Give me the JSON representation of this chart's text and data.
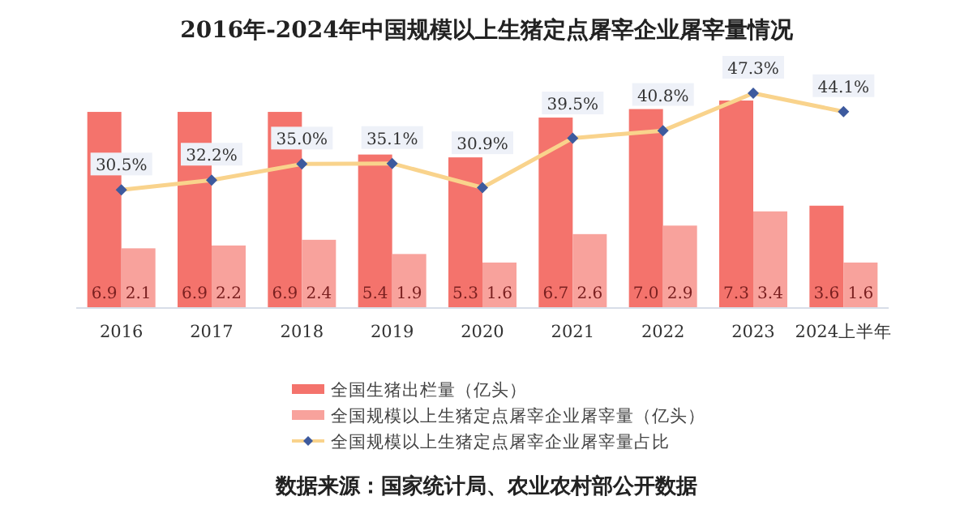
{
  "chart_data": {
    "type": "bar",
    "title": "2016年-2024年中国规模以上生猪定点屠宰企业屠宰量情况",
    "categories": [
      "2016",
      "2017",
      "2018",
      "2019",
      "2020",
      "2021",
      "2022",
      "2023",
      "2024上半年"
    ],
    "series": [
      {
        "name": "全国生猪出栏量（亿头）",
        "color": "#f4736c",
        "values": [
          6.9,
          6.9,
          6.9,
          5.4,
          5.3,
          6.7,
          7.0,
          7.3,
          3.6
        ],
        "value_labels": [
          "6.9",
          "6.9",
          "6.9",
          "5.4",
          "5.3",
          "6.7",
          "7.0",
          "7.3",
          "3.6"
        ]
      },
      {
        "name": "全国规模以上生猪定点屠宰企业屠宰量（亿头）",
        "color": "#f8a29c",
        "values": [
          2.1,
          2.2,
          2.4,
          1.9,
          1.6,
          2.6,
          2.9,
          3.4,
          1.6
        ],
        "value_labels": [
          "2.1",
          "2.2",
          "2.4",
          "1.9",
          "1.6",
          "2.6",
          "2.9",
          "3.4",
          "1.6"
        ]
      },
      {
        "name": "全国规模以上生猪定点屠宰企业屠宰量占比",
        "type": "line",
        "axis": "y2",
        "color": "#f9d38c",
        "marker": "diamond",
        "values": [
          30.5,
          32.2,
          35.0,
          35.1,
          30.9,
          39.5,
          40.8,
          47.3,
          44.1
        ],
        "value_labels": [
          "30.5%",
          "32.2%",
          "35.0%",
          "35.1%",
          "30.9%",
          "39.5%",
          "40.8%",
          "47.3%",
          "44.1%"
        ]
      }
    ],
    "ylim": [
      0,
      7.7
    ],
    "y2lim": [
      10,
      48
    ],
    "tick_labels": "x",
    "legend": "bottom",
    "annotations": [
      "数据来源：国家统计局、农业农村部公开数据"
    ]
  }
}
